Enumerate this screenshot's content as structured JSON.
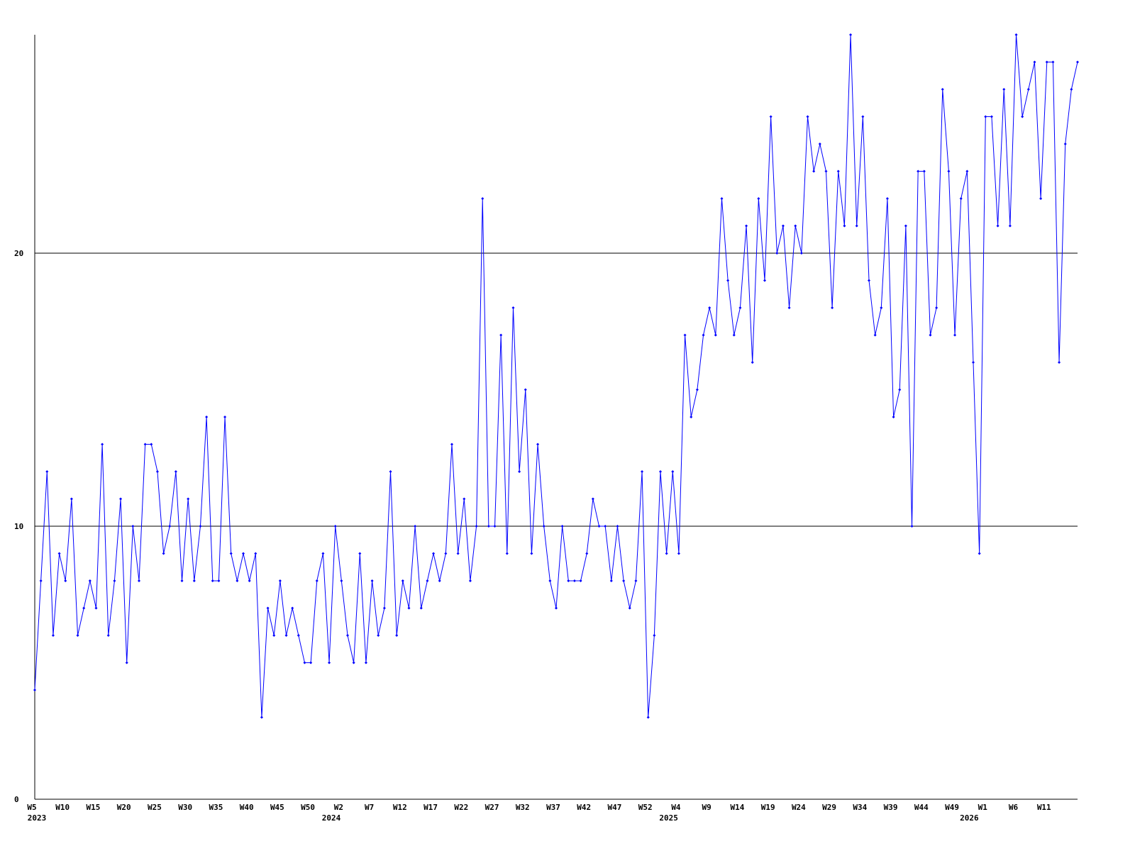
{
  "chart_data": {
    "type": "line",
    "categories": [
      "W5",
      null,
      null,
      null,
      null,
      "W10",
      null,
      null,
      null,
      null,
      "W15",
      null,
      null,
      null,
      null,
      "W20",
      null,
      null,
      null,
      null,
      "W25",
      null,
      null,
      null,
      null,
      "W30",
      null,
      null,
      null,
      null,
      "W35",
      null,
      null,
      null,
      null,
      "W40",
      null,
      null,
      null,
      null,
      "W45",
      null,
      null,
      null,
      null,
      "W50",
      null,
      null,
      null,
      null,
      "W2",
      null,
      null,
      null,
      null,
      "W7",
      null,
      null,
      null,
      null,
      "W12",
      null,
      null,
      null,
      null,
      "W17",
      null,
      null,
      null,
      null,
      "W22",
      null,
      null,
      null,
      null,
      "W27",
      null,
      null,
      null,
      null,
      "W32",
      null,
      null,
      null,
      null,
      "W37",
      null,
      null,
      null,
      null,
      "W42",
      null,
      null,
      null,
      null,
      "W47",
      null,
      null,
      null,
      null,
      "W52",
      null,
      null,
      null,
      null,
      "W4",
      null,
      null,
      null,
      null,
      "W9",
      null,
      null,
      null,
      null,
      "W14",
      null,
      null,
      null,
      null,
      "W19",
      null,
      null,
      null,
      null,
      "W24",
      null,
      null,
      null,
      null,
      "W29",
      null,
      null,
      null,
      null,
      "W34",
      null,
      null,
      null,
      null,
      "W39",
      null,
      null,
      null,
      null,
      "W44",
      null,
      null,
      null,
      null,
      "W49",
      null,
      null,
      null,
      null,
      "W1",
      null,
      null,
      null,
      null,
      "W6",
      null,
      null,
      null,
      null,
      "W11",
      null,
      null,
      null,
      null,
      null
    ],
    "year_labels": [
      "2023",
      null,
      null,
      null,
      null,
      null,
      null,
      null,
      null,
      null,
      null,
      null,
      null,
      null,
      null,
      null,
      null,
      null,
      null,
      null,
      null,
      null,
      null,
      null,
      null,
      null,
      null,
      null,
      null,
      null,
      null,
      null,
      null,
      null,
      null,
      null,
      null,
      null,
      null,
      null,
      null,
      null,
      null,
      null,
      null,
      null,
      null,
      null,
      "2024",
      null,
      null,
      null,
      null,
      null,
      null,
      null,
      null,
      null,
      null,
      null,
      null,
      null,
      null,
      null,
      null,
      null,
      null,
      null,
      null,
      null,
      null,
      null,
      null,
      null,
      null,
      null,
      null,
      null,
      null,
      null,
      null,
      null,
      null,
      null,
      null,
      null,
      null,
      null,
      null,
      null,
      null,
      null,
      null,
      null,
      null,
      null,
      null,
      null,
      null,
      null,
      null,
      null,
      null,
      "2025",
      null,
      null,
      null,
      null,
      null,
      null,
      null,
      null,
      null,
      null,
      null,
      null,
      null,
      null,
      null,
      null,
      null,
      null,
      null,
      null,
      null,
      null,
      null,
      null,
      null,
      null,
      null,
      null,
      null,
      null,
      null,
      null,
      null,
      null,
      null,
      null,
      null,
      null,
      null,
      null,
      null,
      null,
      null,
      null,
      null,
      null,
      null,
      null,
      "2026",
      null,
      null,
      null,
      null,
      null,
      null,
      null,
      null,
      null,
      null,
      null,
      null,
      null,
      null,
      null,
      null
    ],
    "series": [
      {
        "color": "#0000ff",
        "values": [
          4,
          8,
          12,
          6,
          9,
          8,
          11,
          6,
          7,
          8,
          7,
          13,
          6,
          8,
          11,
          5,
          10,
          8,
          13,
          13,
          12,
          9,
          10,
          12,
          8,
          11,
          8,
          10,
          14,
          8,
          8,
          14,
          9,
          8,
          9,
          8,
          9,
          3,
          7,
          6,
          8,
          6,
          7,
          6,
          5,
          5,
          8,
          9,
          5,
          10,
          8,
          6,
          5,
          9,
          5,
          8,
          6,
          7,
          12,
          6,
          8,
          7,
          10,
          7,
          8,
          9,
          8,
          9,
          13,
          9,
          11,
          8,
          10,
          22,
          10,
          10,
          17,
          9,
          18,
          12,
          15,
          9,
          13,
          10,
          8,
          7,
          10,
          8,
          8,
          8,
          9,
          11,
          10,
          10,
          8,
          10,
          8,
          7,
          8,
          12,
          3,
          6,
          12,
          9,
          12,
          9,
          17,
          14,
          15,
          17,
          18,
          17,
          22,
          19,
          17,
          18,
          21,
          16,
          22,
          19,
          25,
          20,
          21,
          18,
          21,
          20,
          25,
          23,
          24,
          23,
          18,
          23,
          21,
          28,
          21,
          25,
          19,
          17,
          18,
          22,
          14,
          15,
          21,
          10,
          23,
          23,
          17,
          18,
          26,
          23,
          17,
          22,
          23,
          16,
          9,
          25,
          25,
          21,
          26,
          21,
          28,
          25,
          26,
          27,
          22,
          27,
          27,
          16,
          24,
          26,
          27
        ]
      }
    ],
    "ylim": [
      0,
      28
    ],
    "yticks": [
      0,
      10,
      20
    ],
    "grid": true
  }
}
